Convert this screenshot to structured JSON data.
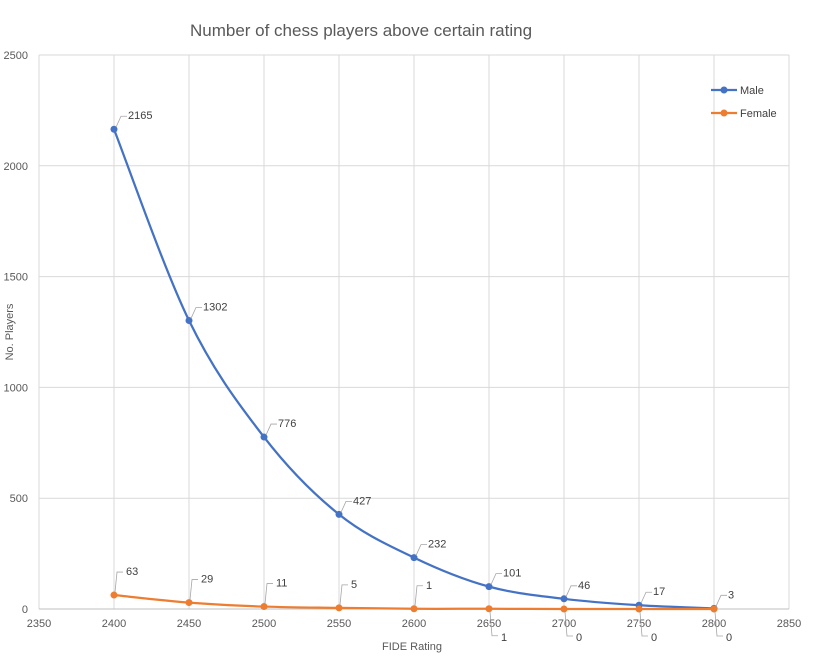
{
  "chart_data": {
    "type": "line",
    "title": "Number of chess players above certain rating",
    "xlabel": "FIDE Rating",
    "ylabel": "No. Players",
    "xlim": [
      2350,
      2850
    ],
    "ylim": [
      0,
      2500
    ],
    "x_ticks": [
      2350,
      2400,
      2450,
      2500,
      2550,
      2600,
      2650,
      2700,
      2750,
      2800,
      2850
    ],
    "y_ticks": [
      0,
      500,
      1000,
      1500,
      2000,
      2500
    ],
    "x": [
      2400,
      2450,
      2500,
      2550,
      2600,
      2650,
      2700,
      2750,
      2800
    ],
    "grid": true,
    "legend_position": "top-right",
    "series": [
      {
        "name": "Male",
        "color": "#4472C4",
        "values": [
          2165,
          1302,
          776,
          427,
          232,
          101,
          46,
          17,
          3
        ]
      },
      {
        "name": "Female",
        "color": "#ED7D31",
        "values": [
          63,
          29,
          11,
          5,
          1,
          1,
          0,
          0,
          0
        ]
      }
    ]
  }
}
